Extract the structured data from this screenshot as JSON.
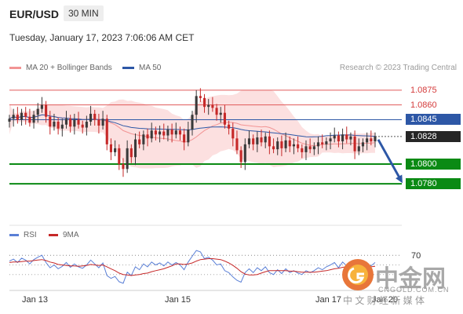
{
  "header": {
    "symbol": "EUR/USD",
    "timeframe": "30 MIN",
    "datetime": "Tuesday, January 17, 2023 7:06:06 AM CET"
  },
  "legend": {
    "ma20": "MA 20 + Bollinger Bands",
    "ma50": "MA 50",
    "credit": "Research © 2023 Trading Central"
  },
  "rsi_legend": {
    "rsi": "RSI",
    "ma": "9MA"
  },
  "colors": {
    "bull": "#3a3a3a",
    "bear": "#c62828",
    "ma20": "#f29494",
    "ma50": "#2d57a6",
    "band": "#fbd5d5",
    "rsi": "#5a7fd6",
    "rsi_ma": "#c62828",
    "resistance": "#e05a5a",
    "pivot": "#2d57a6",
    "support": "#0b8a14"
  },
  "watermark": {
    "brand": "中金网",
    "domain": "CNGOLD.COM.CN",
    "tagline": "中 文 财 经 新 媒 体"
  },
  "chart_data": {
    "type": "candlestick",
    "x_tick_labels": [
      "Jan 13",
      "Jan 15",
      "Jan 17",
      "Jan 20"
    ],
    "price_axis_labels": [
      "1.0875",
      "1.0860",
      "1.0845",
      "1.0828",
      "1.0800",
      "1.0780"
    ],
    "ylim": [
      1.0745,
      1.089
    ],
    "levels": [
      {
        "value": 1.0875,
        "label": "1.0875",
        "role": "resistance"
      },
      {
        "value": 1.086,
        "label": "1.0860",
        "role": "resistance"
      },
      {
        "value": 1.0845,
        "label": "1.0845",
        "role": "pivot"
      },
      {
        "value": 1.0828,
        "label": "1.0828",
        "role": "current"
      },
      {
        "value": 1.08,
        "label": "1.0800",
        "role": "support"
      },
      {
        "value": 1.078,
        "label": "1.0780",
        "role": "support"
      }
    ],
    "forecast": {
      "from": 1.0828,
      "to": 1.078,
      "direction": "down"
    },
    "closes": [
      1.0846,
      1.085,
      1.0845,
      1.0852,
      1.0848,
      1.0842,
      1.085,
      1.0856,
      1.086,
      1.0848,
      1.0838,
      1.0843,
      1.0836,
      1.084,
      1.0846,
      1.0838,
      1.0845,
      1.084,
      1.0837,
      1.0843,
      1.0851,
      1.0845,
      1.0839,
      1.0846,
      1.082,
      1.0812,
      1.0816,
      1.08,
      1.0795,
      1.0816,
      1.0807,
      1.0825,
      1.082,
      1.083,
      1.0826,
      1.0834,
      1.083,
      1.0833,
      1.0829,
      1.0835,
      1.083,
      1.0834,
      1.083,
      1.0822,
      1.0835,
      1.085,
      1.0869,
      1.0867,
      1.0858,
      1.086,
      1.0857,
      1.085,
      1.0852,
      1.084,
      1.0836,
      1.0826,
      1.0814,
      1.0802,
      1.082,
      1.0826,
      1.082,
      1.0827,
      1.0822,
      1.0828,
      1.0818,
      1.0815,
      1.0823,
      1.0816,
      1.0824,
      1.0818,
      1.082,
      1.0816,
      1.0812,
      1.0818,
      1.0815,
      1.0818,
      1.0822,
      1.082,
      1.0823,
      1.0826,
      1.0829,
      1.0823,
      1.083,
      1.0825,
      1.0828,
      1.0813,
      1.0818,
      1.0822,
      1.0826,
      1.0823,
      1.0828
    ],
    "rsi": {
      "levels": [
        70
      ],
      "tick_labels": [
        "70"
      ],
      "values": [
        58,
        62,
        55,
        64,
        60,
        52,
        61,
        66,
        70,
        55,
        44,
        50,
        42,
        47,
        55,
        45,
        52,
        46,
        43,
        50,
        60,
        52,
        44,
        54,
        28,
        22,
        26,
        15,
        12,
        35,
        28,
        46,
        40,
        52,
        46,
        56,
        50,
        54,
        48,
        56,
        50,
        55,
        50,
        40,
        56,
        68,
        80,
        77,
        63,
        66,
        60,
        50,
        52,
        38,
        34,
        25,
        18,
        14,
        34,
        42,
        34,
        44,
        38,
        46,
        34,
        30,
        40,
        32,
        42,
        34,
        38,
        33,
        30,
        38,
        34,
        38,
        44,
        40,
        46,
        50,
        55,
        44,
        56,
        48,
        52,
        34,
        40,
        46,
        52,
        48,
        55
      ],
      "ma9": [
        55,
        56,
        56,
        57,
        58,
        58,
        59,
        60,
        61,
        59,
        56,
        54,
        51,
        50,
        49,
        48,
        48,
        47,
        48,
        49,
        51,
        50,
        49,
        50,
        46,
        42,
        38,
        33,
        30,
        29,
        28,
        29,
        30,
        32,
        33,
        36,
        38,
        40,
        42,
        45,
        48,
        52,
        52,
        51,
        52,
        54,
        58,
        61,
        62,
        63,
        63,
        62,
        61,
        58,
        54,
        49,
        43,
        36,
        31,
        29,
        29,
        30,
        33,
        36,
        38,
        38,
        38,
        38,
        38,
        37,
        37,
        36,
        35,
        35,
        35,
        35,
        36,
        37,
        38,
        40,
        42,
        43,
        45,
        46,
        47,
        47,
        46,
        46,
        46,
        46,
        47
      ]
    }
  }
}
